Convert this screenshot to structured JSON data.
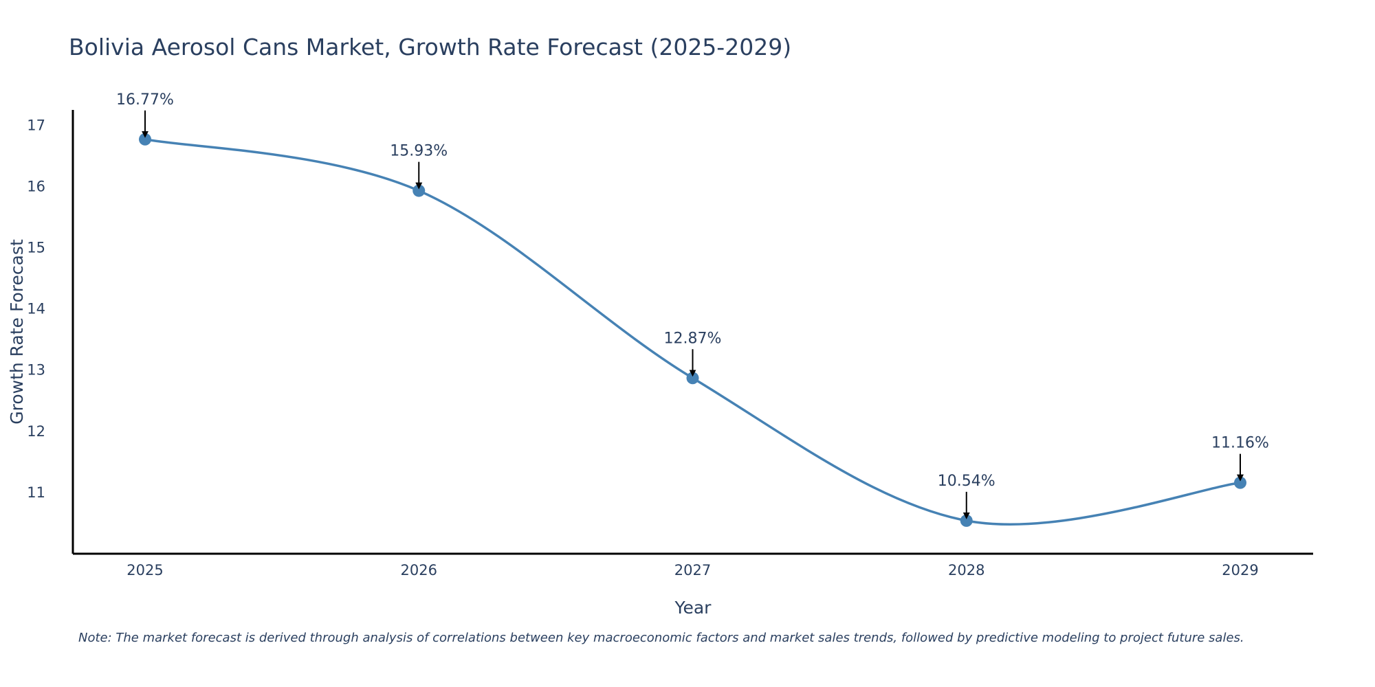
{
  "chart_data": {
    "type": "line",
    "title": "Bolivia Aerosol Cans Market, Growth Rate Forecast (2025-2029)",
    "xlabel": "Year",
    "ylabel": "Growth Rate Forecast",
    "categories": [
      "2025",
      "2026",
      "2027",
      "2028",
      "2029"
    ],
    "values": [
      16.77,
      15.93,
      12.87,
      10.54,
      11.16
    ],
    "labels": [
      "16.77%",
      "15.93%",
      "12.87%",
      "10.54%",
      "11.16%"
    ],
    "yticks": [
      11,
      12,
      13,
      14,
      15,
      16,
      17
    ],
    "ylim": [
      10.0,
      17.25
    ],
    "line_color": "#4682b4",
    "axis_color": "#000000",
    "arrow_color": "#000000",
    "grid": false
  },
  "note": "Note: The market forecast is derived through analysis of correlations between key macroeconomic factors and market sales trends, followed by predictive modeling to project future sales."
}
